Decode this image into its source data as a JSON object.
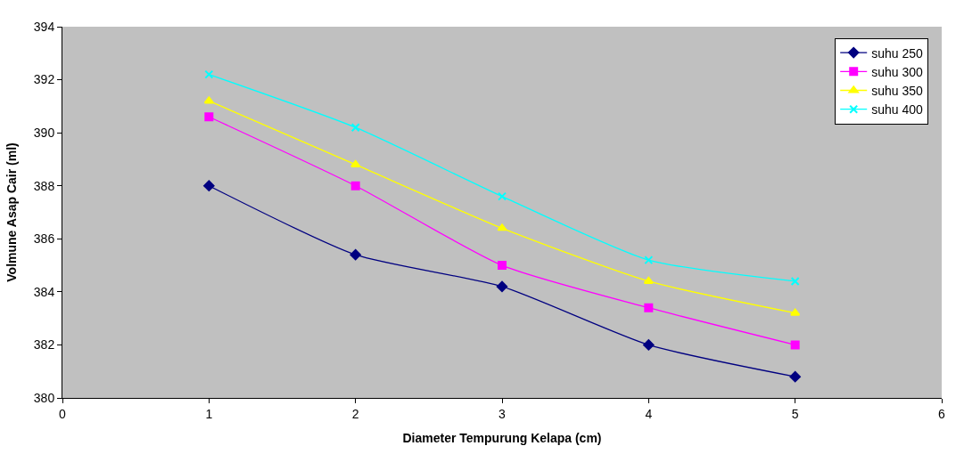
{
  "chart_data": {
    "type": "line",
    "xlabel": "Diameter Tempurung Kelapa (cm)",
    "ylabel": "Volmune Asap Cair (ml)",
    "x": [
      1,
      2,
      3,
      4,
      5
    ],
    "series": [
      {
        "name": "suhu 250",
        "color": "#000080",
        "marker": "diamond",
        "values": [
          388.0,
          385.4,
          384.2,
          382.0,
          380.8
        ]
      },
      {
        "name": "suhu 300",
        "color": "#ff00ff",
        "marker": "square",
        "values": [
          390.6,
          388.0,
          385.0,
          383.4,
          382.0
        ]
      },
      {
        "name": "suhu 350",
        "color": "#ffff00",
        "marker": "triangle",
        "values": [
          391.2,
          388.8,
          386.4,
          384.4,
          383.2
        ]
      },
      {
        "name": "suhu 400",
        "color": "#00ffff",
        "marker": "cross",
        "values": [
          392.2,
          390.2,
          387.6,
          385.2,
          384.4
        ]
      }
    ],
    "xlim": [
      0,
      6
    ],
    "xticks": [
      0,
      1,
      2,
      3,
      4,
      5,
      6
    ],
    "ylim": [
      380,
      394
    ],
    "yticks": [
      380,
      382,
      384,
      386,
      388,
      390,
      392,
      394
    ],
    "grid": false,
    "legend": "top right"
  }
}
